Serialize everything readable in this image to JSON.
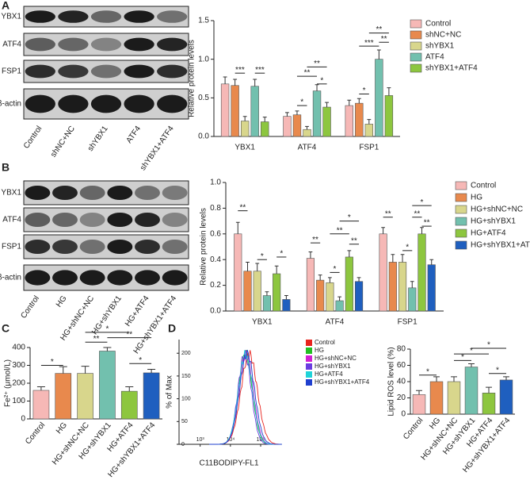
{
  "panel_labels": [
    "A",
    "B",
    "C",
    "D"
  ],
  "blots": [
    {
      "rows": [
        "YBX1",
        "ATF4",
        "FSP1",
        "β-actin"
      ],
      "lanes": [
        "Control",
        "shNC+NC",
        "shYBX1",
        "ATF4",
        "shYBX1+ATF4"
      ]
    },
    {
      "rows": [
        "YBX1",
        "ATF4",
        "FSP1",
        "β-actin"
      ],
      "lanes": [
        "Control",
        "HG",
        "HG+shNC+NC",
        "HG+shYBX1",
        "HG+ATF4",
        "HG+shYBX1+ATF4"
      ]
    }
  ],
  "chart_data": [
    {
      "type": "bar",
      "ylabel": "Relative protein levels",
      "categories": [
        "YBX1",
        "ATF4",
        "FSP1"
      ],
      "ylim": [
        0,
        1.5
      ],
      "yticks": [
        {
          "value": 0,
          "label": "0.0"
        },
        {
          "value": 0.5,
          "label": "0.5"
        },
        {
          "value": 1,
          "label": "1.0"
        },
        {
          "value": 1.5,
          "label": "1.5"
        }
      ],
      "series": [
        {
          "name": "Control",
          "color": "#f6b8b6",
          "values": [
            0.68,
            0.26,
            0.4
          ],
          "errors": [
            0.09,
            0.05,
            0.07
          ]
        },
        {
          "name": "shNC+NC",
          "color": "#e8894d",
          "values": [
            0.66,
            0.28,
            0.43
          ],
          "errors": [
            0.08,
            0.05,
            0.06
          ]
        },
        {
          "name": "shYBX1",
          "color": "#d8d68c",
          "values": [
            0.2,
            0.09,
            0.16
          ],
          "errors": [
            0.06,
            0.04,
            0.06
          ]
        },
        {
          "name": "ATF4",
          "color": "#72c0ae",
          "values": [
            0.65,
            0.59,
            1.0
          ],
          "errors": [
            0.09,
            0.08,
            0.12
          ]
        },
        {
          "name": "shYBX1+ATF4",
          "color": "#8dc63f",
          "values": [
            0.19,
            0.38,
            0.53
          ],
          "errors": [
            0.06,
            0.06,
            0.1
          ]
        }
      ],
      "annotations": [
        "***",
        "***",
        "*",
        "**",
        "*",
        "**",
        "*",
        "***",
        "**",
        "**"
      ]
    },
    {
      "type": "bar",
      "ylabel": "Relative protein levels",
      "categories": [
        "YBX1",
        "ATF4",
        "FSP1"
      ],
      "ylim": [
        0,
        1
      ],
      "yticks": [
        {
          "value": 0,
          "label": "0.0"
        },
        {
          "value": 0.2,
          "label": "0.2"
        },
        {
          "value": 0.4,
          "label": "0.4"
        },
        {
          "value": 0.6,
          "label": "0.6"
        },
        {
          "value": 0.8,
          "label": "0.8"
        },
        {
          "value": 1,
          "label": "1.0"
        }
      ],
      "series": [
        {
          "name": "Control",
          "color": "#f6b8b6",
          "values": [
            0.6,
            0.41,
            0.6
          ],
          "errors": [
            0.09,
            0.05,
            0.05
          ]
        },
        {
          "name": "HG",
          "color": "#e8894d",
          "values": [
            0.31,
            0.24,
            0.38
          ],
          "errors": [
            0.07,
            0.04,
            0.06
          ]
        },
        {
          "name": "HG+shNC+NC",
          "color": "#d8d68c",
          "values": [
            0.31,
            0.22,
            0.38
          ],
          "errors": [
            0.06,
            0.04,
            0.06
          ]
        },
        {
          "name": "HG+shYBX1",
          "color": "#72c0ae",
          "values": [
            0.12,
            0.08,
            0.18
          ],
          "errors": [
            0.03,
            0.03,
            0.05
          ]
        },
        {
          "name": "HG+ATF4",
          "color": "#8dc63f",
          "values": [
            0.29,
            0.42,
            0.6
          ],
          "errors": [
            0.06,
            0.05,
            0.05
          ]
        },
        {
          "name": "HG+shYBX1+ATF4",
          "color": "#1f5fbf",
          "values": [
            0.09,
            0.23,
            0.36
          ],
          "errors": [
            0.03,
            0.03,
            0.04
          ]
        }
      ],
      "annotations": [
        "**",
        "*",
        "*",
        "**",
        "*",
        "**",
        "*",
        "**",
        "**",
        "*",
        "**",
        "*",
        "**"
      ]
    },
    {
      "type": "bar",
      "ylabel": "Fe²⁺ (μmol/L)",
      "categories": [
        "Control",
        "HG",
        "HG+shNC+NC",
        "HG+shYBX1",
        "HG+ATF4",
        "HG+shYBX1+ATF4"
      ],
      "values": [
        160,
        255,
        255,
        380,
        155,
        258
      ],
      "errors": [
        20,
        38,
        40,
        20,
        25,
        20
      ],
      "colors": [
        "#f6b8b6",
        "#e8894d",
        "#d8d68c",
        "#72c0ae",
        "#8dc63f",
        "#1f5fbf"
      ],
      "ylim": [
        0,
        400
      ],
      "yticks": [
        0,
        100,
        200,
        300,
        400
      ],
      "annotations": [
        "*",
        "**",
        "*",
        "**",
        "*"
      ]
    },
    {
      "type": "flow-histogram",
      "ylabel": "% of Max",
      "xlabel": "C11BODIPY-FL1",
      "log_x": true,
      "xlim": [
        200,
        400000
      ],
      "xticks": [
        {
          "value": 1000,
          "label": "10³"
        },
        {
          "value": 10000,
          "label": "10⁴"
        },
        {
          "value": 100000,
          "label": "10⁵"
        }
      ],
      "ylim": [
        0,
        230
      ],
      "yticks": [
        0,
        50,
        100,
        150,
        200
      ],
      "series": [
        {
          "name": "Control",
          "color": "#e8231d"
        },
        {
          "name": "HG",
          "color": "#22c022"
        },
        {
          "name": "HG+shNC+NC",
          "color": "#d21fd2"
        },
        {
          "name": "HG+shYBX1",
          "color": "#6a3de0"
        },
        {
          "name": "HG+ATF4",
          "color": "#1fd3d8"
        },
        {
          "name": "HG+shYBX1+ATF4",
          "color": "#1f3fcf"
        }
      ]
    },
    {
      "type": "bar",
      "ylabel": "Lipid ROS level (%)",
      "categories": [
        "Control",
        "HG",
        "HG+shNC+NC",
        "HG+shYBX1",
        "HG+ATF4",
        "HG+shYBX1+ATF4"
      ],
      "values": [
        24,
        40,
        40,
        58,
        26,
        42
      ],
      "errors": [
        5,
        6,
        6,
        4,
        7,
        4
      ],
      "colors": [
        "#f6b8b6",
        "#e8894d",
        "#d8d68c",
        "#72c0ae",
        "#8dc63f",
        "#1f5fbf"
      ],
      "ylim": [
        0,
        80
      ],
      "yticks": [
        0,
        20,
        40,
        60,
        80
      ],
      "annotations": [
        "*",
        "*",
        "*",
        "*",
        "*"
      ]
    }
  ]
}
